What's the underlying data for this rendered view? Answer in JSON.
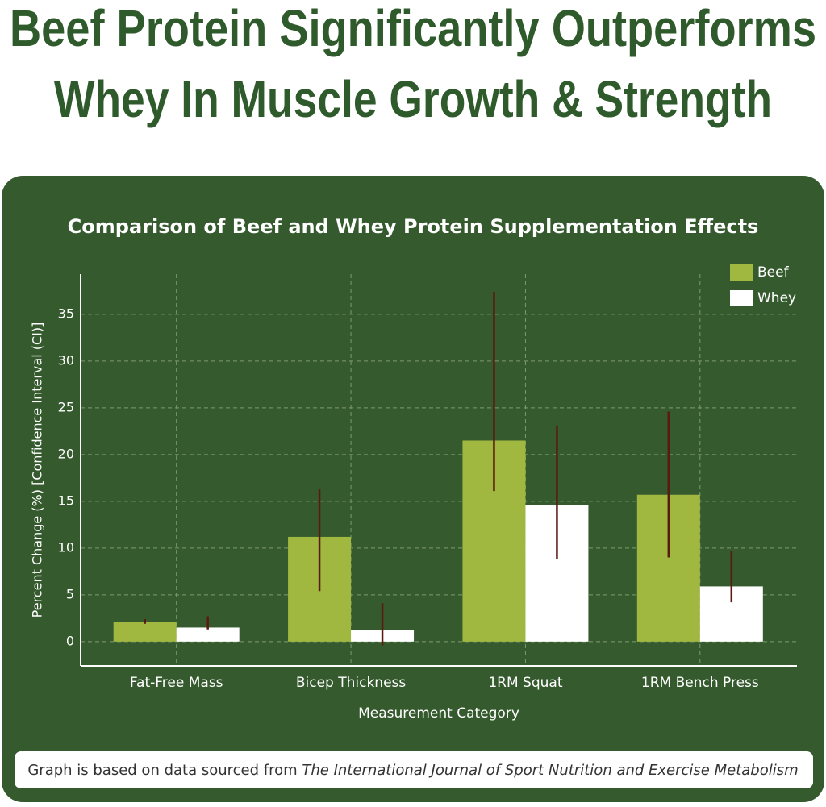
{
  "headline": {
    "lines": [
      "Beef Protein Significantly Outperforms",
      "Whey In Muscle Growth & Strength"
    ]
  },
  "chart_data": {
    "type": "bar",
    "title": "Comparison of Beef and Whey Protein Supplementation Effects",
    "x_label": "Measurement Category",
    "y_label": "Percent Change (%) [Confidence Interval (CI)]",
    "categories": [
      "Fat-Free Mass",
      "Bicep Thickness",
      "1RM Squat",
      "1RM Bench Press"
    ],
    "series": [
      {
        "name": "Beef",
        "color": "#a0b83f",
        "values": [
          2.1,
          11.2,
          21.5,
          15.7
        ],
        "ci_low": [
          1.9,
          5.4,
          16.1,
          9.0
        ],
        "ci_high": [
          2.4,
          16.3,
          37.4,
          24.6
        ]
      },
      {
        "name": "Whey",
        "color": "#ffffff",
        "values": [
          1.5,
          1.2,
          14.6,
          5.9
        ],
        "ci_low": [
          1.3,
          -0.4,
          8.8,
          4.2
        ],
        "ci_high": [
          2.7,
          4.1,
          23.1,
          9.7
        ]
      }
    ],
    "error_color": "#5a1a10",
    "ylim": [
      -2.6,
      39.3
    ],
    "yticks": [
      0,
      5,
      10,
      15,
      20,
      25,
      30,
      35
    ],
    "grid": true,
    "legend": "top-right"
  },
  "footnote": {
    "text": "Graph is based on data sourced from",
    "source": "The International Journal of Sport Nutrition and Exercise Metabolism"
  }
}
